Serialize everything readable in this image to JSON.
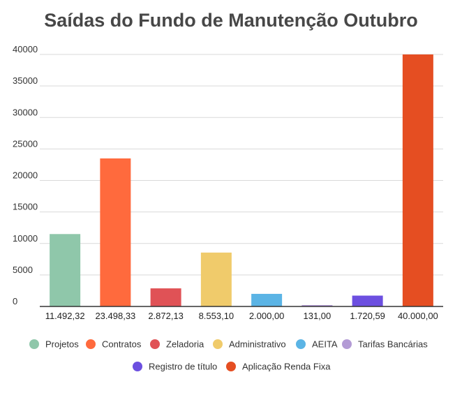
{
  "chart_data": {
    "type": "bar",
    "title": "Saídas do Fundo de Manutenção Outubro",
    "xlabel": "",
    "ylabel": "",
    "ylim": [
      0,
      40000
    ],
    "yticks": [
      0,
      5000,
      10000,
      15000,
      20000,
      25000,
      30000,
      35000,
      40000
    ],
    "grid": true,
    "legend_position": "bottom",
    "categories": [
      "11.492,32",
      "23.498,33",
      "2.872,13",
      "8.553,10",
      "2.000,00",
      "131,00",
      "1.720,59",
      "40.000,00"
    ],
    "series": [
      {
        "name": "Projetos",
        "value": 11492.32,
        "color": "#8fc7aa"
      },
      {
        "name": "Contratos",
        "value": 23498.33,
        "color": "#ff6a3d"
      },
      {
        "name": "Zeladoria",
        "value": 2872.13,
        "color": "#e05256"
      },
      {
        "name": "Administrativo",
        "value": 8553.1,
        "color": "#f0cb6b"
      },
      {
        "name": "AEITA",
        "value": 2000.0,
        "color": "#5bb4e5"
      },
      {
        "name": "Tarifas Bancárias",
        "value": 131.0,
        "color": "#b39bd5"
      },
      {
        "name": "Registro de título",
        "value": 1720.59,
        "color": "#6c4fe0"
      },
      {
        "name": "Aplicação Renda Fixa",
        "value": 40000.0,
        "color": "#e54e22"
      }
    ]
  }
}
